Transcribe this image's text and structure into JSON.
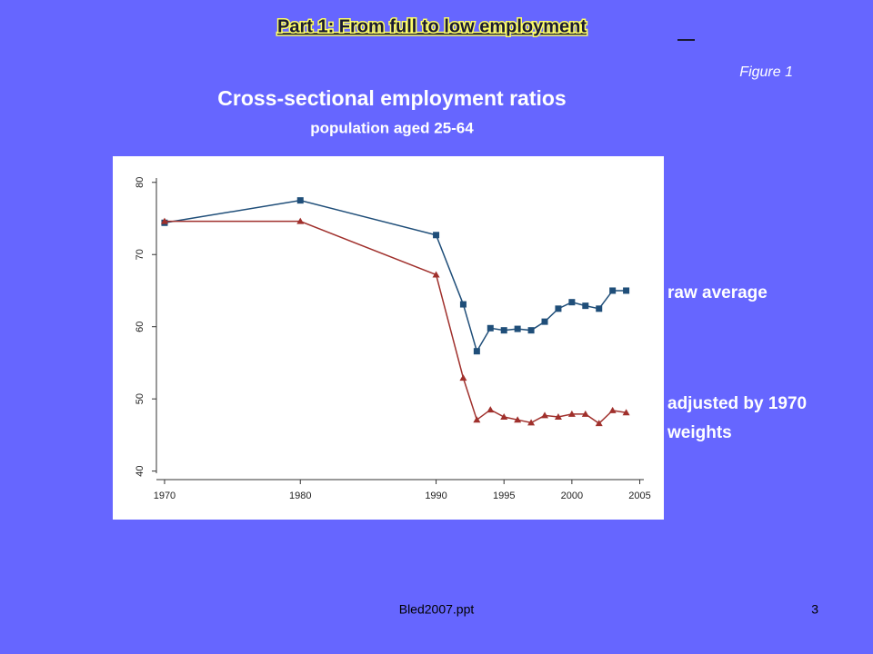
{
  "slide": {
    "title": "Part 1: From full to low employment",
    "figure_label": "Figure 1",
    "footer": "Bled2007.ppt",
    "page_number": "3"
  },
  "chart_data": {
    "type": "line",
    "title": "Cross-sectional employment ratios",
    "subtitle": "population aged 25-64",
    "x": [
      1970,
      1980,
      1990,
      1992,
      1993,
      1994,
      1995,
      1996,
      1997,
      1998,
      1999,
      2000,
      2001,
      2002,
      2003,
      2004
    ],
    "series": [
      {
        "name": "raw average",
        "color": "#1f4e79",
        "marker": "square",
        "values": [
          74.4,
          77.5,
          72.7,
          63.1,
          56.6,
          59.8,
          59.5,
          59.7,
          59.5,
          60.7,
          62.5,
          63.4,
          62.9,
          62.5,
          65.0,
          65.0
        ]
      },
      {
        "name": "adjusted by 1970 weights",
        "color": "#a0302c",
        "marker": "triangle",
        "values": [
          74.6,
          74.6,
          67.2,
          52.9,
          47.1,
          48.5,
          47.5,
          47.1,
          46.7,
          47.7,
          47.5,
          47.9,
          47.9,
          46.6,
          48.4,
          48.1
        ]
      }
    ],
    "xlim": [
      1969.4,
      2005.3
    ],
    "xticks": [
      1970,
      1980,
      1990,
      1995,
      2000,
      2005
    ],
    "ylim": [
      39.7,
      80.6
    ],
    "yticks": [
      40,
      50,
      60,
      70,
      80
    ],
    "grid": false
  }
}
